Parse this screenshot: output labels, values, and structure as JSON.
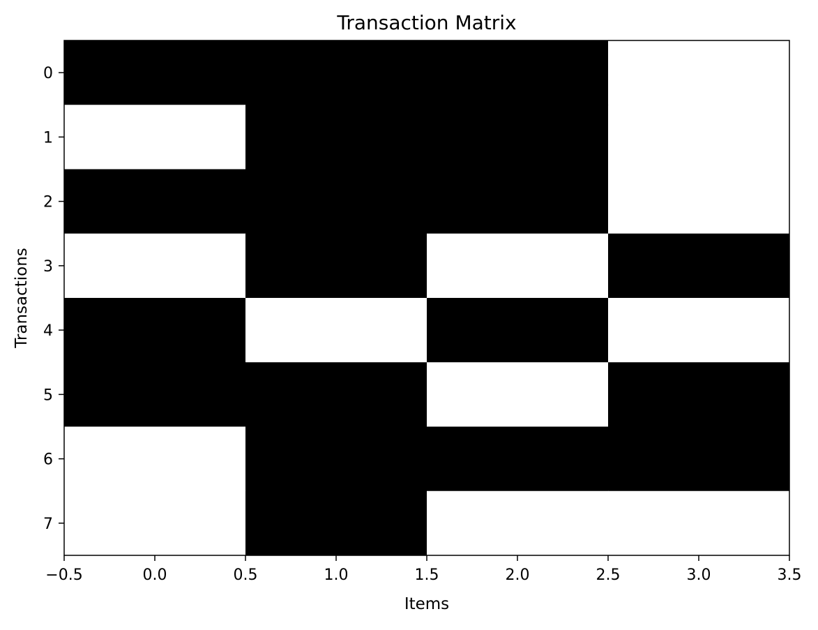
{
  "chart_data": {
    "type": "heatmap",
    "title": "Transaction Matrix",
    "xlabel": "Items",
    "ylabel": "Transactions",
    "xlim": [
      -0.5,
      3.5
    ],
    "ylim": [
      7.5,
      -0.5
    ],
    "xticks": [
      "−0.5",
      "0.0",
      "0.5",
      "1.0",
      "1.5",
      "2.0",
      "2.5",
      "3.0",
      "3.5"
    ],
    "yticks": [
      "0",
      "1",
      "2",
      "3",
      "4",
      "5",
      "6",
      "7"
    ],
    "colormap": {
      "0": "#ffffff",
      "1": "#000000"
    },
    "grid": false,
    "matrix": [
      [
        1,
        1,
        1,
        0
      ],
      [
        0,
        1,
        1,
        0
      ],
      [
        1,
        1,
        1,
        0
      ],
      [
        0,
        1,
        0,
        1
      ],
      [
        1,
        0,
        1,
        0
      ],
      [
        1,
        1,
        0,
        1
      ],
      [
        0,
        1,
        1,
        1
      ],
      [
        0,
        1,
        0,
        0
      ]
    ]
  }
}
